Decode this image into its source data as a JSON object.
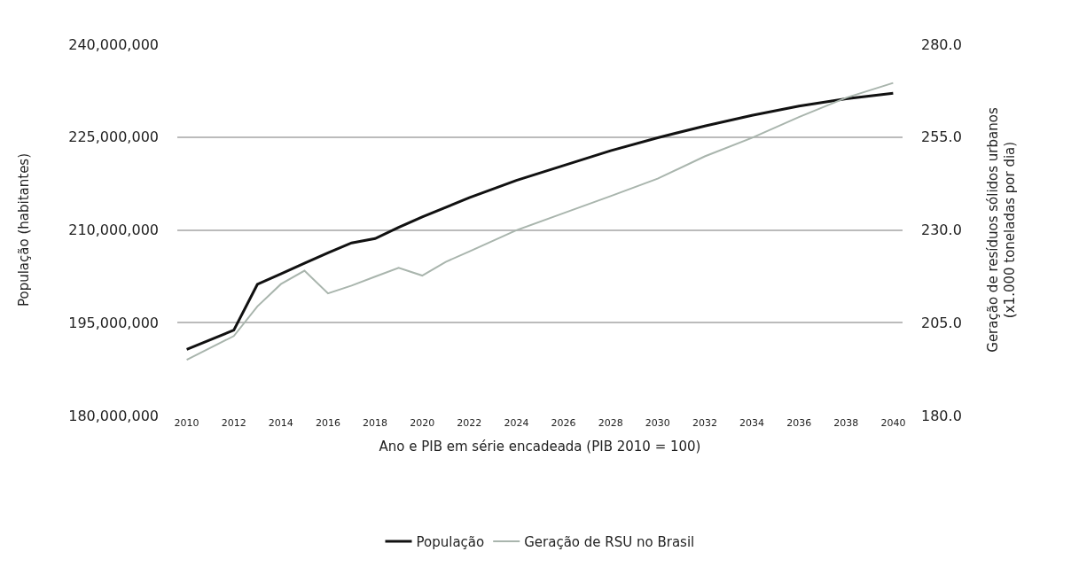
{
  "chart_data": {
    "type": "line",
    "xlabel": "Ano e PIB em série encadeada (PIB 2010 = 100)",
    "ylabel": "População (habitantes)",
    "y2label": "Geração de resíduos sólidos urbanos\n(x1.000 toneladas por dia)",
    "series": [
      {
        "name": "População",
        "color": "#111111",
        "x": [
          2010,
          2012,
          2013,
          2014,
          2015,
          2016,
          2017,
          2018,
          2019,
          2020,
          2022,
          2024,
          2026,
          2028,
          2030,
          2032,
          2034,
          2036,
          2038,
          2040
        ],
        "values": [
          190700000,
          193800000,
          201200000,
          202900000,
          204600000,
          206300000,
          207900000,
          208600000,
          210400000,
          212100000,
          215200000,
          218000000,
          220400000,
          222800000,
          224900000,
          226800000,
          228500000,
          230000000,
          231200000,
          232100000
        ]
      },
      {
        "name": "Geração de RSU no Brasil",
        "color": "#a9b5ad",
        "axis": "y2",
        "x": [
          2010,
          2012,
          2013,
          2014,
          2015,
          2016,
          2017,
          2018,
          2019,
          2020,
          2021,
          2022,
          2024,
          2026,
          2028,
          2030,
          2032,
          2034,
          2036,
          2038,
          2040
        ],
        "values": [
          195.0,
          201.4,
          209.4,
          215.4,
          219.0,
          212.9,
          215.0,
          217.4,
          219.8,
          217.7,
          221.4,
          224.2,
          229.9,
          234.5,
          239.1,
          243.8,
          249.8,
          254.8,
          260.4,
          265.6,
          269.6
        ]
      }
    ],
    "xlim": [
      2009.6,
      2040.4
    ],
    "xticks": [
      2010,
      2012,
      2014,
      2016,
      2018,
      2020,
      2022,
      2024,
      2026,
      2028,
      2030,
      2032,
      2034,
      2036,
      2038,
      2040
    ],
    "ylim": [
      180000000,
      240000000
    ],
    "yticks": [
      {
        "value": 180000000,
        "label": "180,000,000"
      },
      {
        "value": 195000000,
        "label": "195,000,000"
      },
      {
        "value": 210000000,
        "label": "210,000,000"
      },
      {
        "value": 225000000,
        "label": "225,000,000"
      },
      {
        "value": 240000000,
        "label": "240,000,000"
      }
    ],
    "y2lim": [
      180,
      280
    ],
    "y2ticks": [
      {
        "value": 180,
        "label": "180.0"
      },
      {
        "value": 205,
        "label": "205.0"
      },
      {
        "value": 230,
        "label": "230.0"
      },
      {
        "value": 255,
        "label": "255.0"
      },
      {
        "value": 280,
        "label": "280.0"
      }
    ],
    "grid": "y",
    "legend": "bottom",
    "line_style": "solid",
    "marker": "none"
  }
}
